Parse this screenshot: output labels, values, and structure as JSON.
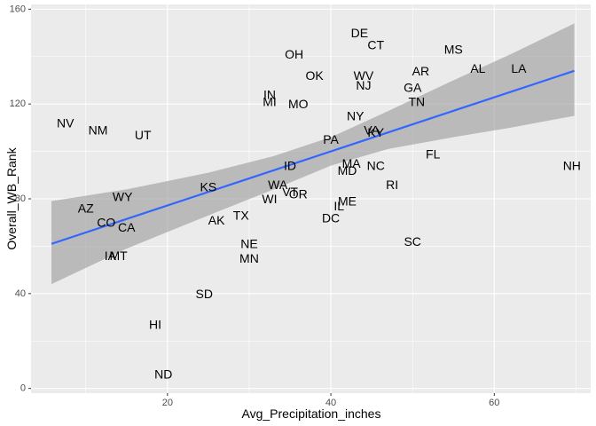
{
  "chart_data": {
    "type": "scatter",
    "title": "",
    "xlabel": "Avg_Precipitation_inches",
    "ylabel": "Overall_WB_Rank",
    "xlim": [
      3.3,
      71.8
    ],
    "ylim": [
      -2,
      162
    ],
    "xticks": [
      20,
      40,
      60
    ],
    "xminor": [
      10,
      30,
      50,
      70
    ],
    "yticks": [
      0,
      40,
      80,
      120,
      160
    ],
    "yminor": [
      20,
      60,
      100,
      140
    ],
    "grid": true,
    "background": "#ebebeb",
    "gridline_color": "#ffffff",
    "text_color": "#000000",
    "points": [
      {
        "label": "DE",
        "x": 43.5,
        "y": 150
      },
      {
        "label": "CT",
        "x": 45.5,
        "y": 145
      },
      {
        "label": "MS",
        "x": 55.0,
        "y": 143
      },
      {
        "label": "OH",
        "x": 35.5,
        "y": 141
      },
      {
        "label": "AL",
        "x": 58.0,
        "y": 135
      },
      {
        "label": "LA",
        "x": 63.0,
        "y": 135
      },
      {
        "label": "AR",
        "x": 51.0,
        "y": 134
      },
      {
        "label": "OK",
        "x": 38.0,
        "y": 132
      },
      {
        "label": "WV",
        "x": 44.0,
        "y": 132
      },
      {
        "label": "NJ",
        "x": 44.0,
        "y": 128
      },
      {
        "label": "GA",
        "x": 50.0,
        "y": 127
      },
      {
        "label": "IN",
        "x": 32.5,
        "y": 124
      },
      {
        "label": "MI",
        "x": 32.5,
        "y": 121
      },
      {
        "label": "MO",
        "x": 36.0,
        "y": 120
      },
      {
        "label": "TN",
        "x": 50.5,
        "y": 121
      },
      {
        "label": "NY",
        "x": 43.0,
        "y": 115
      },
      {
        "label": "NV",
        "x": 7.5,
        "y": 112
      },
      {
        "label": "NM",
        "x": 11.5,
        "y": 109
      },
      {
        "label": "UT",
        "x": 17.0,
        "y": 107
      },
      {
        "label": "VA",
        "x": 45.0,
        "y": 109
      },
      {
        "label": "KY",
        "x": 45.5,
        "y": 108
      },
      {
        "label": "PA",
        "x": 40.0,
        "y": 105
      },
      {
        "label": "FL",
        "x": 52.5,
        "y": 99
      },
      {
        "label": "NH",
        "x": 69.5,
        "y": 94
      },
      {
        "label": "ID",
        "x": 35.0,
        "y": 94
      },
      {
        "label": "MA",
        "x": 42.5,
        "y": 95
      },
      {
        "label": "NC",
        "x": 45.5,
        "y": 94
      },
      {
        "label": "MD",
        "x": 42.0,
        "y": 92
      },
      {
        "label": "RI",
        "x": 47.5,
        "y": 86
      },
      {
        "label": "WA",
        "x": 33.5,
        "y": 86
      },
      {
        "label": "KS",
        "x": 25.0,
        "y": 85
      },
      {
        "label": "VT",
        "x": 35.0,
        "y": 83
      },
      {
        "label": "OR",
        "x": 36.0,
        "y": 82
      },
      {
        "label": "WY",
        "x": 14.5,
        "y": 81
      },
      {
        "label": "WI",
        "x": 32.5,
        "y": 80
      },
      {
        "label": "ME",
        "x": 42.0,
        "y": 79
      },
      {
        "label": "IL",
        "x": 41.0,
        "y": 77
      },
      {
        "label": "AZ",
        "x": 10.0,
        "y": 76
      },
      {
        "label": "TX",
        "x": 29.0,
        "y": 73
      },
      {
        "label": "DC",
        "x": 40.0,
        "y": 72
      },
      {
        "label": "AK",
        "x": 26.0,
        "y": 71
      },
      {
        "label": "CO",
        "x": 12.5,
        "y": 70
      },
      {
        "label": "CA",
        "x": 15.0,
        "y": 68
      },
      {
        "label": "SC",
        "x": 50.0,
        "y": 62
      },
      {
        "label": "NE",
        "x": 30.0,
        "y": 61
      },
      {
        "label": "IA",
        "x": 13.0,
        "y": 56
      },
      {
        "label": "MT",
        "x": 14.0,
        "y": 56
      },
      {
        "label": "MN",
        "x": 30.0,
        "y": 55
      },
      {
        "label": "SD",
        "x": 24.5,
        "y": 40
      },
      {
        "label": "HI",
        "x": 18.5,
        "y": 27
      },
      {
        "label": "ND",
        "x": 19.5,
        "y": 6
      }
    ],
    "fit": {
      "method": "linear",
      "x": [
        5.8,
        69.8
      ],
      "y": [
        61,
        134
      ],
      "line_color": "#3366ff",
      "band_color": "#999999",
      "band": [
        {
          "x": 5.8,
          "lower": 44,
          "upper": 79
        },
        {
          "x": 15,
          "lower": 59,
          "upper": 84
        },
        {
          "x": 25,
          "lower": 73,
          "upper": 91
        },
        {
          "x": 33,
          "lower": 84,
          "upper": 98
        },
        {
          "x": 40,
          "lower": 94,
          "upper": 106
        },
        {
          "x": 47,
          "lower": 101,
          "upper": 117
        },
        {
          "x": 55,
          "lower": 106,
          "upper": 130
        },
        {
          "x": 62,
          "lower": 110,
          "upper": 141
        },
        {
          "x": 69.8,
          "lower": 115,
          "upper": 154
        }
      ]
    }
  }
}
